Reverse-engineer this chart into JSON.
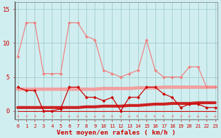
{
  "x": [
    0,
    1,
    2,
    3,
    4,
    5,
    6,
    7,
    8,
    9,
    10,
    11,
    12,
    13,
    14,
    15,
    16,
    17,
    18,
    19,
    20,
    21,
    22,
    23
  ],
  "rafales": [
    8,
    13,
    13,
    5.5,
    5.5,
    5.5,
    13,
    13,
    11,
    10.5,
    6,
    5.5,
    5,
    5.5,
    6,
    10.5,
    6,
    5,
    5,
    5,
    6.5,
    6.5,
    3.5,
    3.5
  ],
  "moyen": [
    3.5,
    3,
    3,
    0,
    0,
    0.3,
    3.5,
    3.5,
    2,
    2,
    1.5,
    2,
    0,
    2,
    2,
    3.5,
    3.5,
    2.5,
    2,
    0.5,
    1,
    1,
    0.5,
    0.5
  ],
  "zero_line": [
    0,
    0,
    0,
    0,
    0,
    0,
    0,
    0,
    0,
    0,
    0,
    0,
    0,
    0,
    0,
    0,
    0,
    0,
    0,
    0,
    0,
    0,
    0,
    0
  ],
  "trend_rafales": [
    3.2,
    3.2,
    3.2,
    3.2,
    3.2,
    3.2,
    3.2,
    3.2,
    3.2,
    3.2,
    3.3,
    3.3,
    3.3,
    3.3,
    3.4,
    3.4,
    3.4,
    3.5,
    3.5,
    3.5,
    3.5,
    3.5,
    3.5,
    3.5
  ],
  "trend_moyen": [
    0.5,
    0.5,
    0.5,
    0.5,
    0.5,
    0.5,
    0.5,
    0.5,
    0.6,
    0.6,
    0.7,
    0.7,
    0.7,
    0.8,
    0.8,
    0.9,
    1.0,
    1.0,
    1.1,
    1.1,
    1.1,
    1.2,
    1.2,
    1.2
  ],
  "bg_color": "#d0eef0",
  "grid_color": "#a0cccc",
  "color_rafales": "#f08080",
  "color_moyen": "#cc0000",
  "color_trend_rafales": "#f0a0a0",
  "color_trend_moyen": "#cc2222",
  "ylabel_ticks": [
    0,
    5,
    10,
    15
  ],
  "ylim": [
    -1.2,
    16
  ],
  "xlim": [
    -0.3,
    23.3
  ],
  "xlabel": "Vent moyen/en rafales ( km/h )"
}
